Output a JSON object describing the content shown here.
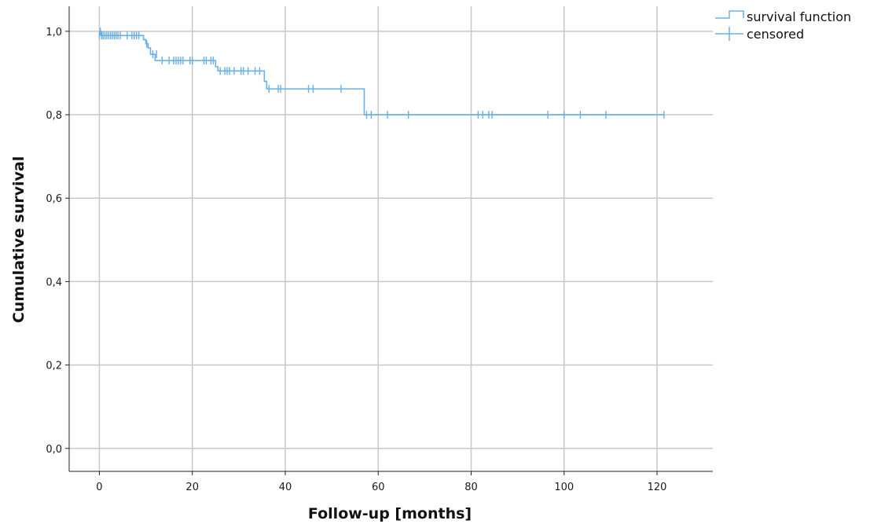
{
  "chart_data": {
    "type": "line",
    "title": "",
    "xlabel": "Follow-up [months]",
    "ylabel": "Cumulative survival",
    "xlim": [
      -6.5,
      132
    ],
    "ylim": [
      -0.055,
      1.06
    ],
    "x_ticks": [
      0,
      20,
      40,
      60,
      80,
      100,
      120
    ],
    "x_tick_labels": [
      "0",
      "20",
      "40",
      "60",
      "80",
      "100",
      "120"
    ],
    "y_ticks": [
      0,
      0.2,
      0.4,
      0.6,
      0.8,
      1.0
    ],
    "y_tick_labels": [
      "0,0",
      "0,2",
      "0,4",
      "0,6",
      "0,8",
      "1,0"
    ],
    "grid": true,
    "legend_position": "top-right",
    "colors": {
      "series": "#6ab0e8",
      "grid": "#c8c8c8",
      "axis": "#222222"
    },
    "series": [
      {
        "name": "survival function",
        "step": [
          [
            0,
            1.0
          ],
          [
            0.3,
            0.99
          ],
          [
            9.5,
            0.98
          ],
          [
            10,
            0.97
          ],
          [
            10.5,
            0.96
          ],
          [
            11,
            0.945
          ],
          [
            12,
            0.93
          ],
          [
            25,
            0.915
          ],
          [
            25.5,
            0.905
          ],
          [
            35.5,
            0.88
          ],
          [
            36,
            0.862
          ],
          [
            57,
            0.8
          ],
          [
            121.5,
            0.8
          ]
        ]
      },
      {
        "name": "censored",
        "points": [
          [
            0,
            0.99
          ],
          [
            0.2,
            1.0
          ],
          [
            0.5,
            0.99
          ],
          [
            0.8,
            0.99
          ],
          [
            1.2,
            0.99
          ],
          [
            1.6,
            0.99
          ],
          [
            2,
            0.99
          ],
          [
            2.4,
            0.99
          ],
          [
            2.8,
            0.99
          ],
          [
            3.2,
            0.99
          ],
          [
            3.6,
            0.99
          ],
          [
            4,
            0.99
          ],
          [
            4.5,
            0.99
          ],
          [
            6,
            0.99
          ],
          [
            7,
            0.99
          ],
          [
            7.5,
            0.99
          ],
          [
            8,
            0.99
          ],
          [
            8.5,
            0.99
          ],
          [
            10.2,
            0.97
          ],
          [
            11.5,
            0.945
          ],
          [
            12.3,
            0.945
          ],
          [
            13.5,
            0.93
          ],
          [
            15,
            0.93
          ],
          [
            16,
            0.93
          ],
          [
            16.5,
            0.93
          ],
          [
            17,
            0.93
          ],
          [
            17.5,
            0.93
          ],
          [
            18,
            0.93
          ],
          [
            19.5,
            0.93
          ],
          [
            20,
            0.93
          ],
          [
            22.5,
            0.93
          ],
          [
            23,
            0.93
          ],
          [
            24,
            0.93
          ],
          [
            24.5,
            0.93
          ],
          [
            26,
            0.905
          ],
          [
            27,
            0.905
          ],
          [
            27.5,
            0.905
          ],
          [
            28,
            0.905
          ],
          [
            29,
            0.905
          ],
          [
            30.5,
            0.905
          ],
          [
            31,
            0.905
          ],
          [
            32,
            0.905
          ],
          [
            33.5,
            0.905
          ],
          [
            34.5,
            0.905
          ],
          [
            36.5,
            0.862
          ],
          [
            38.5,
            0.862
          ],
          [
            39,
            0.862
          ],
          [
            45,
            0.862
          ],
          [
            46,
            0.862
          ],
          [
            52,
            0.862
          ],
          [
            57.5,
            0.8
          ],
          [
            58.5,
            0.8
          ],
          [
            62,
            0.8
          ],
          [
            66.5,
            0.8
          ],
          [
            81.5,
            0.8
          ],
          [
            82.5,
            0.8
          ],
          [
            83.8,
            0.8
          ],
          [
            84.5,
            0.8
          ],
          [
            96.5,
            0.8
          ],
          [
            100,
            0.8
          ],
          [
            103.5,
            0.8
          ],
          [
            109,
            0.8
          ],
          [
            121.5,
            0.8
          ]
        ]
      }
    ]
  }
}
